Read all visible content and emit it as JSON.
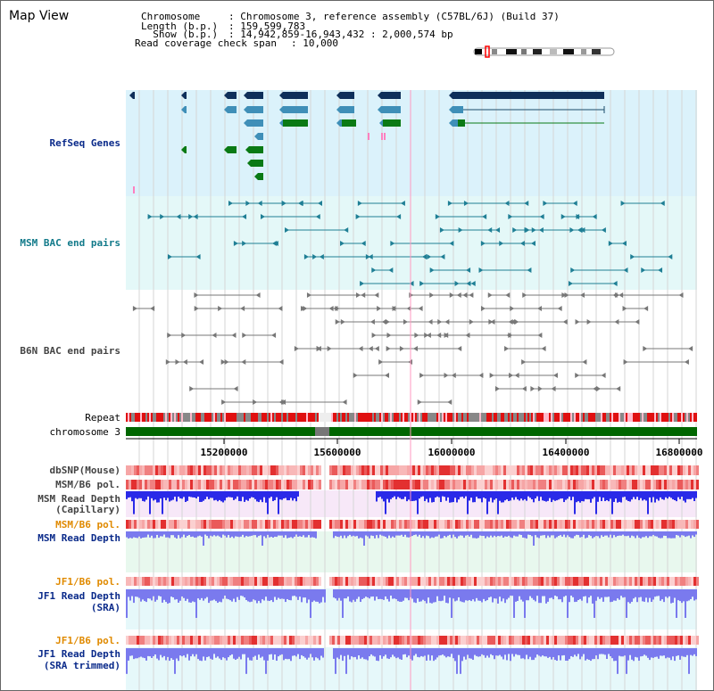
{
  "view_title": "Map View",
  "header": {
    "chromosome_key": "Chromosome    ",
    "chromosome_value": ": Chromosome 3, reference assembly (C57BL/6J) (Build 37)",
    "length_key": "Length (b.p.) ",
    "length_value": ": 159,599,783",
    "show_key": "  Show (b.p.) ",
    "show_value": ": 14,942,859-16,943,432 : 2,000,574 bp",
    "coverage_key": "Read coverage check span",
    "coverage_value": ": 10,000"
  },
  "tracks": {
    "refseq": "RefSeq Genes",
    "msm_bac": "MSM BAC end pairs",
    "b6n_bac": "B6N BAC end pairs",
    "repeat": "Repeat",
    "chromosome": "chromosome 3",
    "dbsnp": "dbSNP(Mouse)",
    "msm_b6_pol_1": "MSM/B6 pol.",
    "msm_depth_cap_1": "MSM Read Depth",
    "msm_depth_cap_2": "(Capillary)",
    "msm_b6_pol_2": "MSM/B6 pol.",
    "msm_depth_sra": "MSM Read Depth",
    "jf1_b6_pol_1": "JF1/B6 pol.",
    "jf1_depth_1": "JF1 Read Depth",
    "jf1_depth_2": "(SRA)",
    "jf1_b6_pol_2": "JF1/B6 pol.",
    "jf1_trim_1": "JF1 Read Depth",
    "jf1_trim_2": "(SRA trimmed)"
  },
  "axis": {
    "ticks": [
      "15200000",
      "15600000",
      "16000000",
      "16400000",
      "16800000"
    ]
  },
  "colors": {
    "refseq_bg": "#dbf2fb",
    "msm_bac_bg": "#e4f8f8",
    "gene_dark": "#0f2f5a",
    "gene_light": "#3f8fb8",
    "gene_green": "#0a7a14",
    "bac_teal": "#1f7f95",
    "bac_grey": "#777777",
    "repeat_red": "#e01010",
    "chrom_green": "#006600",
    "depth_blue": "#2a2ae8",
    "depth_violet": "#7a7aee",
    "depth_bg_pink": "#f7e8f8",
    "depth_bg_mint": "#e8f8ee",
    "depth_bg_cyan": "#e6f8fa"
  }
}
